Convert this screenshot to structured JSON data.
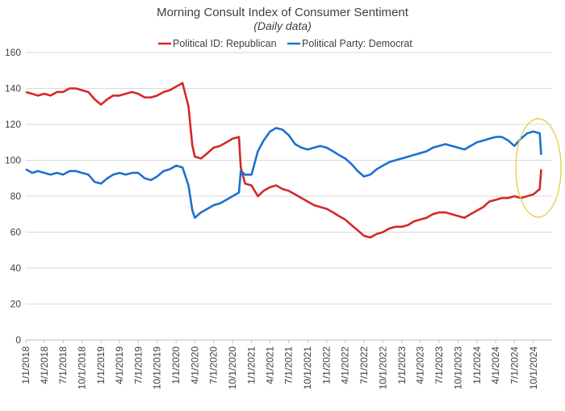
{
  "chart_data": {
    "type": "line",
    "title": "Morning Consult Index of Consumer Sentiment",
    "subtitle": "(Daily data)",
    "xlabel": "",
    "ylabel": "",
    "ylim": [
      0,
      160
    ],
    "yticks": [
      0,
      20,
      40,
      60,
      80,
      100,
      120,
      140,
      160
    ],
    "x_tick_labels": [
      "1/1/2018",
      "4/1/2018",
      "7/1/2018",
      "10/1/2018",
      "1/1/2019",
      "4/1/2019",
      "7/1/2019",
      "10/1/2019",
      "1/1/2020",
      "4/1/2020",
      "7/1/2020",
      "10/1/2020",
      "1/1/2021",
      "4/1/2021",
      "7/1/2021",
      "10/1/2021",
      "1/1/2022",
      "4/1/2022",
      "7/1/2022",
      "10/1/2022",
      "1/1/2023",
      "4/1/2023",
      "7/1/2023",
      "10/1/2023",
      "1/1/2024",
      "4/1/2024",
      "7/1/2024",
      "10/1/2024"
    ],
    "xlim": [
      "1/1/2018",
      "12/31/2024"
    ],
    "grid": "horizontal",
    "legend_position": "top",
    "series": [
      {
        "name": "Political ID: Republican",
        "color": "#d62728",
        "points": [
          [
            "1/1/2018",
            138
          ],
          [
            "2/1/2018",
            137
          ],
          [
            "3/1/2018",
            136
          ],
          [
            "4/1/2018",
            137
          ],
          [
            "5/1/2018",
            136
          ],
          [
            "6/1/2018",
            138
          ],
          [
            "7/1/2018",
            138
          ],
          [
            "8/1/2018",
            140
          ],
          [
            "9/1/2018",
            140
          ],
          [
            "10/1/2018",
            139
          ],
          [
            "11/1/2018",
            138
          ],
          [
            "12/1/2018",
            134
          ],
          [
            "1/1/2019",
            131
          ],
          [
            "2/1/2019",
            134
          ],
          [
            "3/1/2019",
            136
          ],
          [
            "4/1/2019",
            136
          ],
          [
            "5/1/2019",
            137
          ],
          [
            "6/1/2019",
            138
          ],
          [
            "7/1/2019",
            137
          ],
          [
            "8/1/2019",
            135
          ],
          [
            "9/1/2019",
            135
          ],
          [
            "10/1/2019",
            136
          ],
          [
            "11/1/2019",
            138
          ],
          [
            "12/1/2019",
            139
          ],
          [
            "1/1/2020",
            141
          ],
          [
            "2/1/2020",
            143
          ],
          [
            "3/1/2020",
            130
          ],
          [
            "3/20/2020",
            108
          ],
          [
            "4/1/2020",
            102
          ],
          [
            "5/1/2020",
            101
          ],
          [
            "6/1/2020",
            104
          ],
          [
            "7/1/2020",
            107
          ],
          [
            "8/1/2020",
            108
          ],
          [
            "9/1/2020",
            110
          ],
          [
            "10/1/2020",
            112
          ],
          [
            "11/1/2020",
            113
          ],
          [
            "11/10/2020",
            96
          ],
          [
            "12/1/2020",
            87
          ],
          [
            "1/1/2021",
            86
          ],
          [
            "2/1/2021",
            80
          ],
          [
            "3/1/2021",
            83
          ],
          [
            "4/1/2021",
            85
          ],
          [
            "5/1/2021",
            86
          ],
          [
            "6/1/2021",
            84
          ],
          [
            "7/1/2021",
            83
          ],
          [
            "8/1/2021",
            81
          ],
          [
            "9/1/2021",
            79
          ],
          [
            "10/1/2021",
            77
          ],
          [
            "11/1/2021",
            75
          ],
          [
            "12/1/2021",
            74
          ],
          [
            "1/1/2022",
            73
          ],
          [
            "2/1/2022",
            71
          ],
          [
            "3/1/2022",
            69
          ],
          [
            "4/1/2022",
            67
          ],
          [
            "5/1/2022",
            64
          ],
          [
            "6/1/2022",
            61
          ],
          [
            "7/1/2022",
            58
          ],
          [
            "8/1/2022",
            57
          ],
          [
            "9/1/2022",
            59
          ],
          [
            "10/1/2022",
            60
          ],
          [
            "11/1/2022",
            62
          ],
          [
            "12/1/2022",
            63
          ],
          [
            "1/1/2023",
            63
          ],
          [
            "2/1/2023",
            64
          ],
          [
            "3/1/2023",
            66
          ],
          [
            "4/1/2023",
            67
          ],
          [
            "5/1/2023",
            68
          ],
          [
            "6/1/2023",
            70
          ],
          [
            "7/1/2023",
            71
          ],
          [
            "8/1/2023",
            71
          ],
          [
            "9/1/2023",
            70
          ],
          [
            "10/1/2023",
            69
          ],
          [
            "11/1/2023",
            68
          ],
          [
            "12/1/2023",
            70
          ],
          [
            "1/1/2024",
            72
          ],
          [
            "2/1/2024",
            74
          ],
          [
            "3/1/2024",
            77
          ],
          [
            "4/1/2024",
            78
          ],
          [
            "5/1/2024",
            79
          ],
          [
            "6/1/2024",
            79
          ],
          [
            "7/1/2024",
            80
          ],
          [
            "8/1/2024",
            79
          ],
          [
            "9/1/2024",
            80
          ],
          [
            "10/1/2024",
            81
          ],
          [
            "11/1/2024",
            84
          ],
          [
            "11/8/2024",
            95
          ]
        ]
      },
      {
        "name": "Political Party: Democrat",
        "color": "#1f6fd1",
        "points": [
          [
            "1/1/2018",
            95
          ],
          [
            "2/1/2018",
            93
          ],
          [
            "3/1/2018",
            94
          ],
          [
            "4/1/2018",
            93
          ],
          [
            "5/1/2018",
            92
          ],
          [
            "6/1/2018",
            93
          ],
          [
            "7/1/2018",
            92
          ],
          [
            "8/1/2018",
            94
          ],
          [
            "9/1/2018",
            94
          ],
          [
            "10/1/2018",
            93
          ],
          [
            "11/1/2018",
            92
          ],
          [
            "12/1/2018",
            88
          ],
          [
            "1/1/2019",
            87
          ],
          [
            "2/1/2019",
            90
          ],
          [
            "3/1/2019",
            92
          ],
          [
            "4/1/2019",
            93
          ],
          [
            "5/1/2019",
            92
          ],
          [
            "6/1/2019",
            93
          ],
          [
            "7/1/2019",
            93
          ],
          [
            "8/1/2019",
            90
          ],
          [
            "9/1/2019",
            89
          ],
          [
            "10/1/2019",
            91
          ],
          [
            "11/1/2019",
            94
          ],
          [
            "12/1/2019",
            95
          ],
          [
            "1/1/2020",
            97
          ],
          [
            "2/1/2020",
            96
          ],
          [
            "3/1/2020",
            86
          ],
          [
            "3/20/2020",
            72
          ],
          [
            "4/1/2020",
            68
          ],
          [
            "5/1/2020",
            71
          ],
          [
            "6/1/2020",
            73
          ],
          [
            "7/1/2020",
            75
          ],
          [
            "8/1/2020",
            76
          ],
          [
            "9/1/2020",
            78
          ],
          [
            "10/1/2020",
            80
          ],
          [
            "11/1/2020",
            82
          ],
          [
            "11/10/2020",
            94
          ],
          [
            "12/1/2020",
            92
          ],
          [
            "1/1/2021",
            92
          ],
          [
            "2/1/2021",
            105
          ],
          [
            "3/1/2021",
            111
          ],
          [
            "4/1/2021",
            116
          ],
          [
            "5/1/2021",
            118
          ],
          [
            "6/1/2021",
            117
          ],
          [
            "7/1/2021",
            114
          ],
          [
            "8/1/2021",
            109
          ],
          [
            "9/1/2021",
            107
          ],
          [
            "10/1/2021",
            106
          ],
          [
            "11/1/2021",
            107
          ],
          [
            "12/1/2021",
            108
          ],
          [
            "1/1/2022",
            107
          ],
          [
            "2/1/2022",
            105
          ],
          [
            "3/1/2022",
            103
          ],
          [
            "4/1/2022",
            101
          ],
          [
            "5/1/2022",
            98
          ],
          [
            "6/1/2022",
            94
          ],
          [
            "7/1/2022",
            91
          ],
          [
            "8/1/2022",
            92
          ],
          [
            "9/1/2022",
            95
          ],
          [
            "10/1/2022",
            97
          ],
          [
            "11/1/2022",
            99
          ],
          [
            "12/1/2022",
            100
          ],
          [
            "1/1/2023",
            101
          ],
          [
            "2/1/2023",
            102
          ],
          [
            "3/1/2023",
            103
          ],
          [
            "4/1/2023",
            104
          ],
          [
            "5/1/2023",
            105
          ],
          [
            "6/1/2023",
            107
          ],
          [
            "7/1/2023",
            108
          ],
          [
            "8/1/2023",
            109
          ],
          [
            "9/1/2023",
            108
          ],
          [
            "10/1/2023",
            107
          ],
          [
            "11/1/2023",
            106
          ],
          [
            "12/1/2023",
            108
          ],
          [
            "1/1/2024",
            110
          ],
          [
            "2/1/2024",
            111
          ],
          [
            "3/1/2024",
            112
          ],
          [
            "4/1/2024",
            113
          ],
          [
            "5/1/2024",
            113
          ],
          [
            "6/1/2024",
            111
          ],
          [
            "7/1/2024",
            108
          ],
          [
            "8/1/2024",
            112
          ],
          [
            "9/1/2024",
            115
          ],
          [
            "10/1/2024",
            116
          ],
          [
            "11/1/2024",
            115
          ],
          [
            "11/8/2024",
            103
          ]
        ]
      }
    ]
  }
}
